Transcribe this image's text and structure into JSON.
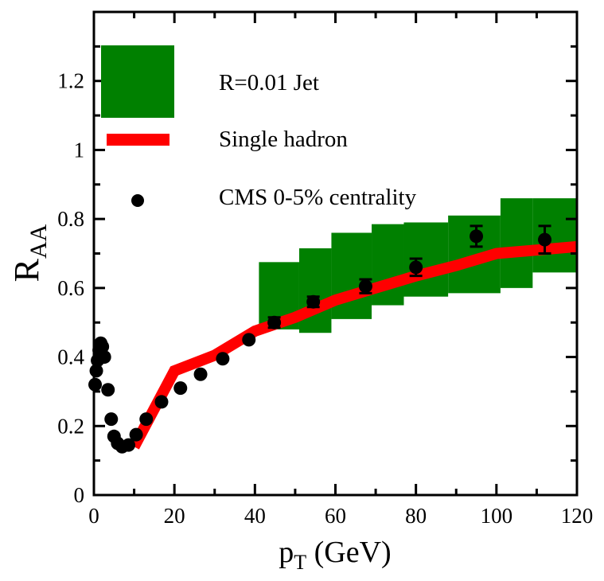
{
  "chart_data": {
    "type": "line",
    "xlabel_main": "p",
    "xlabel_sub": "T",
    "xlabel_unit": " (GeV)",
    "ylabel_main": "R",
    "ylabel_sub": "AA",
    "xlim": [
      0,
      120
    ],
    "ylim": [
      0,
      1.4
    ],
    "x_ticks": [
      0,
      20,
      40,
      60,
      80,
      100,
      120
    ],
    "y_ticks": [
      0,
      0.2,
      0.4,
      0.6,
      0.8,
      1,
      1.2
    ],
    "x_tick_labels": [
      "0",
      "20",
      "40",
      "60",
      "80",
      "100",
      "120"
    ],
    "y_tick_labels": [
      "0",
      "0.2",
      "0.4",
      "0.6",
      "0.8",
      "1",
      "1.2"
    ],
    "legend": [
      {
        "label": "R=0.01 Jet",
        "kind": "band",
        "color": "#008000"
      },
      {
        "label": "Single hadron",
        "kind": "line",
        "color": "#ff0000"
      },
      {
        "label": "CMS 0-5% centrality",
        "kind": "marker",
        "color": "#000000"
      }
    ],
    "jet_band": [
      {
        "x0": 41,
        "x1": 51,
        "ylo": 0.48,
        "yhi": 0.675
      },
      {
        "x0": 51,
        "x1": 59,
        "ylo": 0.47,
        "yhi": 0.715
      },
      {
        "x0": 59,
        "x1": 69,
        "ylo": 0.51,
        "yhi": 0.76
      },
      {
        "x0": 69,
        "x1": 77,
        "ylo": 0.55,
        "yhi": 0.785
      },
      {
        "x0": 77,
        "x1": 88,
        "ylo": 0.575,
        "yhi": 0.79
      },
      {
        "x0": 88,
        "x1": 101,
        "ylo": 0.585,
        "yhi": 0.81
      },
      {
        "x0": 101,
        "x1": 109,
        "ylo": 0.6,
        "yhi": 0.86
      },
      {
        "x0": 109,
        "x1": 120,
        "ylo": 0.645,
        "yhi": 0.86
      }
    ],
    "single_hadron": {
      "x": [
        10,
        20,
        30,
        40,
        50,
        60,
        70,
        80,
        90,
        100,
        110,
        120
      ],
      "y": [
        0.14,
        0.36,
        0.405,
        0.475,
        0.515,
        0.565,
        0.6,
        0.635,
        0.665,
        0.7,
        0.71,
        0.72
      ]
    },
    "cms": {
      "x": [
        0.3,
        0.6,
        0.9,
        1.3,
        1.7,
        2.1,
        2.6,
        3.5,
        4.3,
        5.0,
        5.9,
        7.0,
        8.6,
        10.5,
        13.0,
        16.8,
        21.5,
        26.5,
        32.0,
        38.5,
        44.8,
        54.5,
        67.5,
        80.0,
        95.0,
        112.0
      ],
      "y": [
        0.32,
        0.36,
        0.39,
        0.42,
        0.44,
        0.43,
        0.4,
        0.305,
        0.22,
        0.17,
        0.15,
        0.14,
        0.145,
        0.175,
        0.22,
        0.27,
        0.31,
        0.35,
        0.395,
        0.45,
        0.5,
        0.56,
        0.605,
        0.66,
        0.75,
        0.74
      ],
      "err": [
        0,
        0,
        0,
        0,
        0,
        0,
        0,
        0,
        0,
        0,
        0,
        0,
        0,
        0,
        0,
        0,
        0,
        0,
        0,
        0,
        0.015,
        0.015,
        0.02,
        0.025,
        0.03,
        0.04
      ]
    }
  }
}
